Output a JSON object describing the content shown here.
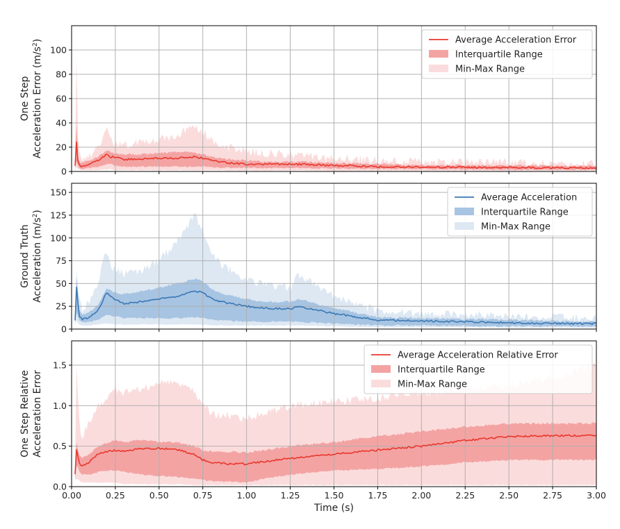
{
  "chart_data": [
    {
      "type": "area",
      "ylabel_lines": [
        "One Step",
        "Acceleration Error (m/s²)"
      ],
      "xlim": [
        0,
        3.0
      ],
      "ylim": [
        0,
        120
      ],
      "yticks": [
        0,
        20,
        40,
        60,
        80,
        100
      ],
      "ytick_labels": [
        "0",
        "20",
        "40",
        "60",
        "80",
        "100"
      ],
      "xticks": [
        0,
        0.25,
        0.5,
        0.75,
        1.0,
        1.25,
        1.5,
        1.75,
        2.0,
        2.25,
        2.5,
        2.75,
        3.0
      ],
      "grid": true,
      "legend_position": "top-right",
      "colors": {
        "line": "#e8372c",
        "iqr": "#f4a3a3",
        "minmax": "#fbdcdc"
      },
      "legend": [
        "Average Acceleration Error",
        "Interquartile Range",
        "Min-Max Range"
      ],
      "x": [
        0.02,
        0.03,
        0.035,
        0.05,
        0.1,
        0.15,
        0.2,
        0.22,
        0.25,
        0.3,
        0.4,
        0.5,
        0.6,
        0.7,
        0.75,
        0.8,
        0.9,
        1.0,
        1.1,
        1.25,
        1.3,
        1.5,
        1.75,
        2.0,
        2.25,
        2.5,
        2.75,
        3.0
      ],
      "mean": [
        5,
        28,
        8,
        4,
        6,
        9,
        14,
        12,
        12,
        10,
        10,
        11,
        11,
        12,
        11,
        9,
        7,
        6,
        6,
        6,
        6,
        5,
        4,
        3.5,
        3.5,
        3.2,
        3,
        3
      ],
      "q1": [
        3,
        10,
        4,
        2,
        3,
        4,
        6,
        6,
        5,
        4,
        4,
        4,
        4,
        4,
        4,
        3.5,
        3,
        3,
        3,
        3,
        3,
        2.5,
        2.2,
        2,
        1.8,
        1.6,
        1.5,
        1.5
      ],
      "q3": [
        8,
        46,
        12,
        7,
        9,
        12,
        17,
        16,
        15,
        14,
        14,
        15,
        16,
        16,
        14,
        12,
        10,
        9,
        8,
        8,
        8,
        7,
        6,
        5,
        5,
        5,
        4.5,
        4.5
      ],
      "min": [
        1,
        4,
        2,
        1,
        1,
        1,
        2,
        2,
        1,
        1,
        1,
        1,
        1,
        1,
        1,
        1,
        0.8,
        0.8,
        0.8,
        0.8,
        0.8,
        0.5,
        0.5,
        0.5,
        0.4,
        0.4,
        0.4,
        0.4
      ],
      "max": [
        15,
        113,
        30,
        10,
        12,
        18,
        35,
        25,
        22,
        22,
        24,
        27,
        30,
        37,
        33,
        25,
        20,
        17,
        15,
        14,
        13,
        11,
        9,
        8,
        8,
        8,
        7,
        6
      ]
    },
    {
      "type": "area",
      "ylabel_lines": [
        "Ground Truth",
        "Acceleration (m/s²)"
      ],
      "xlim": [
        0,
        3.0
      ],
      "ylim": [
        0,
        160
      ],
      "yticks": [
        0,
        25,
        50,
        75,
        100,
        125,
        150
      ],
      "ytick_labels": [
        "0",
        "25",
        "50",
        "75",
        "100",
        "125",
        "150"
      ],
      "xticks": [
        0,
        0.25,
        0.5,
        0.75,
        1.0,
        1.25,
        1.5,
        1.75,
        2.0,
        2.25,
        2.5,
        2.75,
        3.0
      ],
      "grid": true,
      "legend_position": "top-right",
      "colors": {
        "line": "#3a78b5",
        "iqr": "#a7c4e2",
        "minmax": "#dde8f3"
      },
      "legend": [
        "Average Acceleration",
        "Interquartile Range",
        "Min-Max Range"
      ],
      "x": [
        0.02,
        0.03,
        0.04,
        0.06,
        0.1,
        0.15,
        0.2,
        0.22,
        0.25,
        0.3,
        0.4,
        0.5,
        0.6,
        0.7,
        0.75,
        0.8,
        0.9,
        1.0,
        1.1,
        1.25,
        1.3,
        1.5,
        1.75,
        2.0,
        2.25,
        2.5,
        2.75,
        3.0
      ],
      "mean": [
        10,
        55,
        15,
        11,
        13,
        20,
        40,
        36,
        33,
        28,
        30,
        33,
        35,
        42,
        40,
        33,
        28,
        25,
        23,
        22,
        25,
        17,
        10,
        9,
        8,
        7,
        6,
        6
      ],
      "q1": [
        8,
        20,
        10,
        7,
        8,
        10,
        16,
        15,
        14,
        12,
        12,
        12,
        12,
        13,
        12,
        10,
        9,
        8,
        8,
        8,
        8,
        6,
        4,
        4,
        3.5,
        3,
        3,
        3
      ],
      "q3": [
        12,
        67,
        22,
        15,
        18,
        26,
        45,
        42,
        40,
        38,
        42,
        45,
        50,
        55,
        53,
        43,
        37,
        33,
        30,
        30,
        33,
        23,
        13,
        12,
        11,
        10,
        9,
        8
      ],
      "min": [
        5,
        10,
        5,
        4,
        4,
        5,
        6,
        6,
        5,
        5,
        5,
        5,
        5,
        5,
        5,
        4,
        4,
        4,
        4,
        4,
        4,
        3,
        2,
        2,
        2,
        1.5,
        1.5,
        1.5
      ],
      "max": [
        20,
        70,
        35,
        20,
        30,
        50,
        88,
        70,
        65,
        60,
        65,
        75,
        95,
        125,
        110,
        80,
        65,
        55,
        50,
        45,
        60,
        35,
        20,
        18,
        16,
        14,
        13,
        12
      ]
    },
    {
      "type": "area",
      "ylabel_lines": [
        "One Step Relative",
        "Acceleration Error"
      ],
      "xlim": [
        0,
        3.0
      ],
      "ylim": [
        0,
        1.8
      ],
      "yticks": [
        0,
        0.5,
        1.0,
        1.5
      ],
      "ytick_labels": [
        "0.0",
        "0.5",
        "1.0",
        "1.5"
      ],
      "xticks": [
        0,
        0.25,
        0.5,
        0.75,
        1.0,
        1.25,
        1.5,
        1.75,
        2.0,
        2.25,
        2.5,
        2.75,
        3.0
      ],
      "xtick_labels": [
        "0.00",
        "0.25",
        "0.50",
        "0.75",
        "1.00",
        "1.25",
        "1.50",
        "1.75",
        "2.00",
        "2.25",
        "2.50",
        "2.75",
        "3.00"
      ],
      "xlabel": "Time (s)",
      "grid": true,
      "legend_position": "top-right",
      "colors": {
        "line": "#e8372c",
        "iqr": "#f4a3a3",
        "minmax": "#fbdcdc"
      },
      "legend": [
        "Average Acceleration Relative Error",
        "Interquartile Range",
        "Min-Max Range"
      ],
      "x": [
        0.02,
        0.03,
        0.04,
        0.06,
        0.1,
        0.15,
        0.2,
        0.25,
        0.3,
        0.4,
        0.5,
        0.6,
        0.7,
        0.75,
        0.8,
        0.9,
        1.0,
        1.1,
        1.25,
        1.5,
        1.75,
        2.0,
        2.25,
        2.5,
        2.75,
        3.0
      ],
      "mean": [
        0.16,
        0.53,
        0.3,
        0.25,
        0.3,
        0.4,
        0.43,
        0.45,
        0.44,
        0.47,
        0.47,
        0.46,
        0.4,
        0.33,
        0.3,
        0.28,
        0.28,
        0.31,
        0.35,
        0.4,
        0.45,
        0.5,
        0.57,
        0.62,
        0.63,
        0.63
      ],
      "q1": [
        0.1,
        0.3,
        0.2,
        0.15,
        0.15,
        0.18,
        0.2,
        0.2,
        0.18,
        0.15,
        0.13,
        0.12,
        0.1,
        0.08,
        0.07,
        0.06,
        0.05,
        0.1,
        0.15,
        0.2,
        0.22,
        0.25,
        0.3,
        0.33,
        0.33,
        0.33
      ],
      "q3": [
        0.25,
        0.6,
        0.4,
        0.35,
        0.4,
        0.5,
        0.53,
        0.58,
        0.55,
        0.58,
        0.55,
        0.55,
        0.5,
        0.45,
        0.43,
        0.43,
        0.42,
        0.45,
        0.5,
        0.55,
        0.62,
        0.68,
        0.74,
        0.78,
        0.78,
        0.78
      ],
      "min": [
        0.08,
        0.1,
        0.08,
        0.05,
        0.05,
        0.05,
        0.05,
        0.05,
        0.03,
        0.03,
        0.03,
        0.03,
        0.02,
        0.02,
        0.02,
        0.02,
        0.02,
        0.02,
        0.02,
        0.02,
        0.02,
        0.02,
        0.02,
        0.02,
        0.02,
        0.02
      ],
      "max": [
        0.4,
        1.7,
        0.8,
        0.6,
        0.8,
        1.0,
        1.1,
        1.2,
        1.15,
        1.2,
        1.3,
        1.3,
        1.2,
        1.0,
        0.9,
        0.88,
        0.85,
        0.9,
        1.0,
        1.05,
        1.1,
        1.15,
        1.2,
        1.25,
        1.35,
        1.5
      ]
    }
  ]
}
